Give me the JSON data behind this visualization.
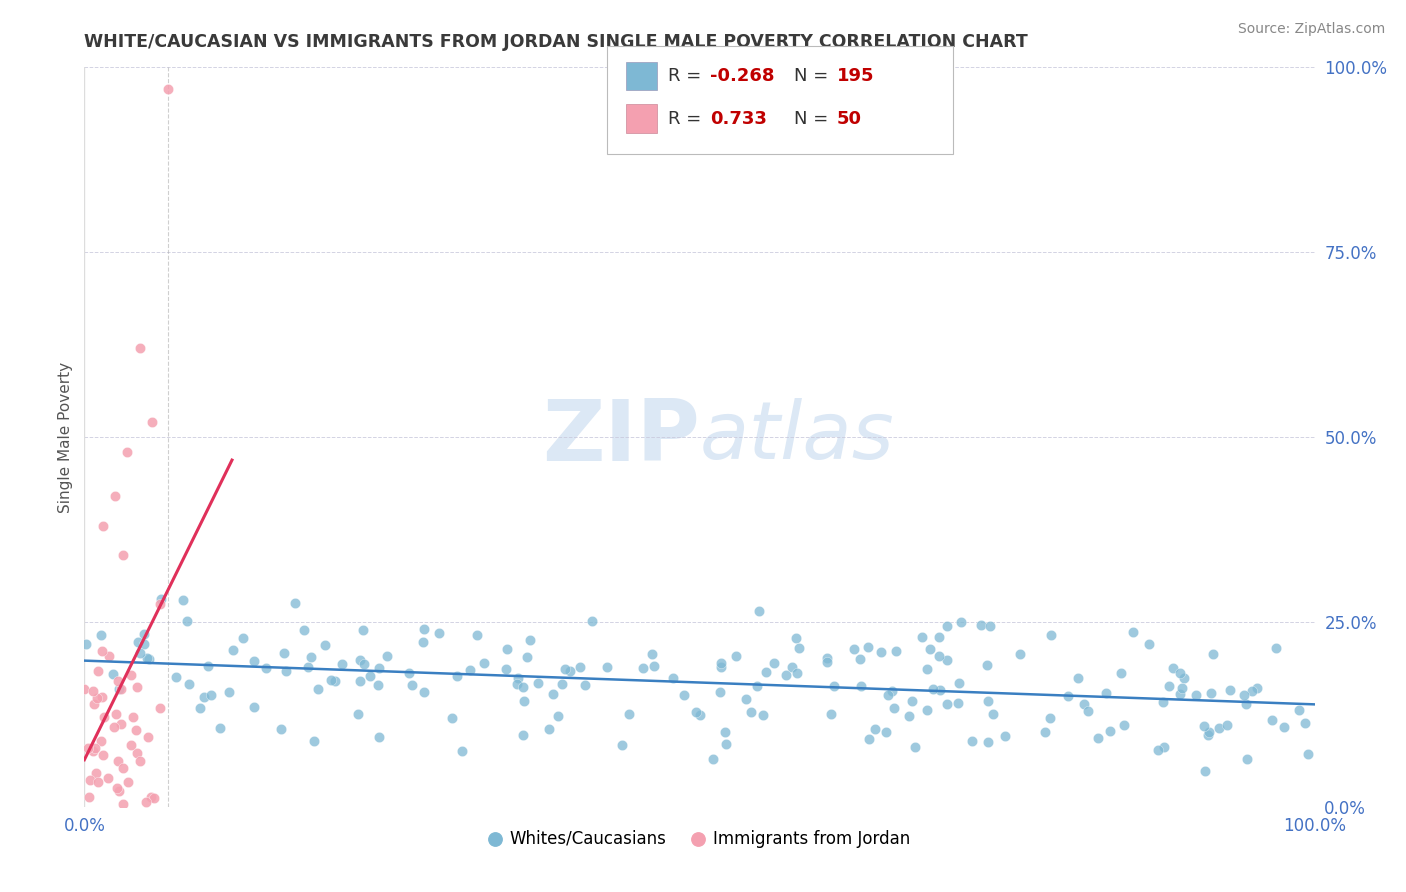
{
  "title": "WHITE/CAUCASIAN VS IMMIGRANTS FROM JORDAN SINGLE MALE POVERTY CORRELATION CHART",
  "source": "Source: ZipAtlas.com",
  "ylabel": "Single Male Poverty",
  "blue_R": -0.268,
  "blue_N": 195,
  "pink_R": 0.733,
  "pink_N": 50,
  "blue_color": "#7eb8d4",
  "pink_color": "#f4a0b0",
  "blue_line_color": "#3a7fc1",
  "pink_line_color": "#e0305a",
  "title_color": "#3a3a3a",
  "source_color": "#888888",
  "axis_label_color": "#4472c4",
  "red_color": "#c00000",
  "watermark_color": "#dce8f5",
  "background_color": "#ffffff",
  "grid_color": "#c8c8dc",
  "xlim": [
    0,
    1
  ],
  "ylim": [
    0,
    1
  ],
  "yticks": [
    0.0,
    0.25,
    0.5,
    0.75,
    1.0
  ],
  "ytick_labels": [
    "0.0%",
    "25.0%",
    "50.0%",
    "75.0%",
    "100.0%"
  ],
  "xticks": [
    0.0,
    0.25,
    0.5,
    0.75,
    1.0
  ],
  "xtick_labels": [
    "0.0%",
    "",
    "",
    "",
    "100.0%"
  ]
}
